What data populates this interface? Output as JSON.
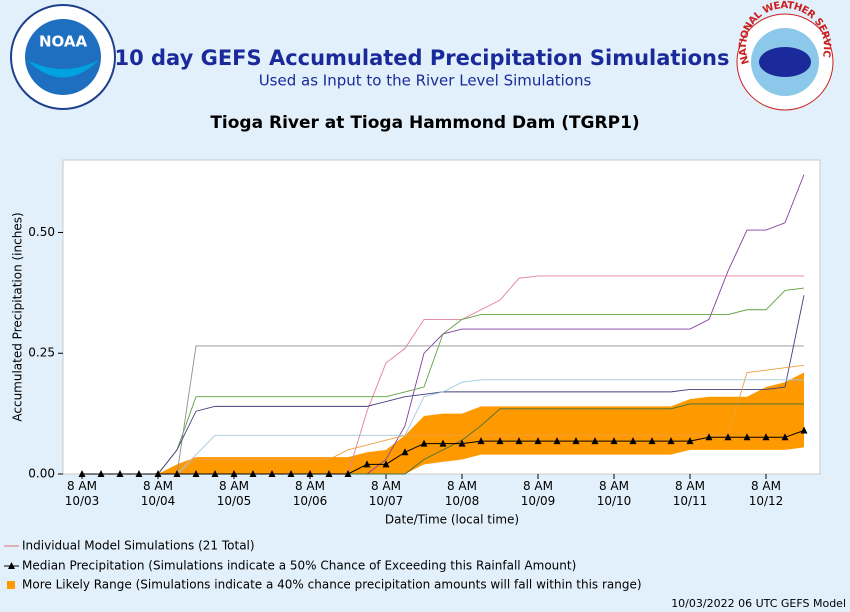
{
  "chart_data": {
    "type": "line",
    "title": "10 day GEFS Accumulated Precipitation Simulations",
    "subtitle": "Used as Input to the River Level Simulations",
    "station": "Tioga River at Tioga Hammond Dam (TGRP1)",
    "logo_left": "NOAA",
    "logo_right": "NATIONAL WEATHER SERVICE",
    "x_label": "Date/Time (local time)",
    "y_label": "Accumulated Precipitation (inches)",
    "footer": "10/03/2022 06 UTC GEFS Model",
    "categories": [
      "8 AM 10/03",
      null,
      null,
      null,
      "8 AM 10/04",
      null,
      null,
      null,
      "8 AM 10/05",
      null,
      null,
      null,
      "8 AM 10/06",
      null,
      null,
      null,
      "8 AM 10/07",
      null,
      null,
      null,
      "8 AM 10/08",
      null,
      null,
      null,
      "8 AM 10/09",
      null,
      null,
      null,
      "8 AM 10/10",
      null,
      null,
      null,
      "8 AM 10/11",
      null,
      null,
      null,
      "8 AM 10/12",
      null,
      null
    ],
    "ylim": [
      0,
      0.65
    ],
    "yticks": [
      {
        "value": 0,
        "label": "0.00"
      },
      {
        "value": 0.25,
        "label": "0.25"
      },
      {
        "value": 0.5,
        "label": "0.50"
      }
    ],
    "grid": false,
    "individual": {
      "name": "Individual Model Simulations (21 Total)",
      "color": "#e07070",
      "series": [
        {
          "color": "#8040a0",
          "values": [
            0,
            0,
            0,
            0,
            0,
            0,
            0,
            0,
            0,
            0,
            0,
            0,
            0,
            0,
            0,
            0,
            0.03,
            0.1,
            0.25,
            0.29,
            0.3,
            0.3,
            0.3,
            0.3,
            0.3,
            0.3,
            0.3,
            0.3,
            0.3,
            0.3,
            0.3,
            0.3,
            0.3,
            0.32,
            0.42,
            0.505,
            0.505,
            0.52,
            0.62
          ]
        },
        {
          "color": "#e080a0",
          "values": [
            0,
            0,
            0,
            0,
            0,
            0,
            0,
            0,
            0,
            0,
            0,
            0,
            0,
            0,
            0,
            0.13,
            0.23,
            0.26,
            0.32,
            0.32,
            0.32,
            0.34,
            0.36,
            0.405,
            0.41,
            0.41,
            0.41,
            0.41,
            0.41,
            0.41,
            0.41,
            0.41,
            0.41,
            0.41,
            0.41,
            0.41,
            0.41,
            0.41,
            0.41
          ]
        },
        {
          "color": "#60a040",
          "values": [
            0,
            0,
            0,
            0,
            0,
            0.05,
            0.16,
            0.16,
            0.16,
            0.16,
            0.16,
            0.16,
            0.16,
            0.16,
            0.16,
            0.16,
            0.16,
            0.17,
            0.18,
            0.29,
            0.32,
            0.33,
            0.33,
            0.33,
            0.33,
            0.33,
            0.33,
            0.33,
            0.33,
            0.33,
            0.33,
            0.33,
            0.33,
            0.33,
            0.33,
            0.34,
            0.34,
            0.38,
            0.385
          ]
        },
        {
          "color": "#909090",
          "values": [
            0,
            0,
            0,
            0,
            0,
            0,
            0.265,
            0.265,
            0.265,
            0.265,
            0.265,
            0.265,
            0.265,
            0.265,
            0.265,
            0.265,
            0.265,
            0.265,
            0.265,
            0.265,
            0.265,
            0.265,
            0.265,
            0.265,
            0.265,
            0.265,
            0.265,
            0.265,
            0.265,
            0.265,
            0.265,
            0.265,
            0.265,
            0.265,
            0.265,
            0.265,
            0.265,
            0.265,
            0.265
          ]
        },
        {
          "color": "#404080",
          "values": [
            0,
            0,
            0,
            0,
            0,
            0.05,
            0.13,
            0.14,
            0.14,
            0.14,
            0.14,
            0.14,
            0.14,
            0.14,
            0.14,
            0.14,
            0.15,
            0.16,
            0.165,
            0.17,
            0.17,
            0.17,
            0.17,
            0.17,
            0.17,
            0.17,
            0.17,
            0.17,
            0.17,
            0.17,
            0.17,
            0.17,
            0.175,
            0.175,
            0.175,
            0.175,
            0.175,
            0.18,
            0.37
          ]
        },
        {
          "color": "#f0a040",
          "values": [
            0,
            0,
            0,
            0,
            0,
            0,
            0.03,
            0.03,
            0.03,
            0.03,
            0.03,
            0.03,
            0.03,
            0.03,
            0.05,
            0.06,
            0.07,
            0.08,
            0.08,
            0.08,
            0.08,
            0.08,
            0.08,
            0.08,
            0.08,
            0.08,
            0.08,
            0.08,
            0.08,
            0.08,
            0.08,
            0.08,
            0.08,
            0.08,
            0.08,
            0.21,
            0.215,
            0.22,
            0.225
          ]
        },
        {
          "color": "#a0c8e0",
          "values": [
            0,
            0,
            0,
            0,
            0,
            0,
            0.04,
            0.08,
            0.08,
            0.08,
            0.08,
            0.08,
            0.08,
            0.08,
            0.08,
            0.08,
            0.08,
            0.08,
            0.16,
            0.17,
            0.19,
            0.195,
            0.195,
            0.195,
            0.195,
            0.195,
            0.195,
            0.195,
            0.195,
            0.195,
            0.195,
            0.195,
            0.195,
            0.195,
            0.195,
            0.195,
            0.195,
            0.195,
            0.195
          ]
        },
        {
          "color": "#407040",
          "values": [
            0,
            0,
            0,
            0,
            0,
            0,
            0,
            0,
            0,
            0,
            0,
            0,
            0,
            0,
            0,
            0,
            0,
            0,
            0.03,
            0.05,
            0.07,
            0.1,
            0.135,
            0.135,
            0.135,
            0.135,
            0.135,
            0.135,
            0.135,
            0.135,
            0.135,
            0.135,
            0.145,
            0.145,
            0.145,
            0.145,
            0.145,
            0.145,
            0.145
          ]
        }
      ]
    },
    "median": {
      "name": "Median Precipitation (Simulations indicate a 50% Chance of Exceeding this Rainfall Amount)",
      "color": "#000000",
      "values": [
        0,
        0,
        0,
        0,
        0,
        0,
        0,
        0,
        0,
        0,
        0,
        0,
        0,
        0,
        0,
        0.02,
        0.02,
        0.045,
        0.063,
        0.063,
        0.063,
        0.068,
        0.068,
        0.068,
        0.068,
        0.068,
        0.068,
        0.068,
        0.068,
        0.068,
        0.068,
        0.068,
        0.068,
        0.076,
        0.076,
        0.076,
        0.076,
        0.076,
        0.09
      ]
    },
    "range": {
      "name": "More Likely Range (Simulations indicate a 40% chance precipitation amounts will fall within this range)",
      "color": "#ff9900",
      "high": [
        null,
        null,
        null,
        null,
        0,
        0.02,
        0.035,
        0.035,
        0.035,
        0.035,
        0.035,
        0.035,
        0.035,
        0.035,
        0.035,
        0.045,
        0.05,
        0.08,
        0.12,
        0.125,
        0.125,
        0.14,
        0.14,
        0.14,
        0.14,
        0.14,
        0.14,
        0.14,
        0.14,
        0.14,
        0.14,
        0.14,
        0.155,
        0.16,
        0.16,
        0.16,
        0.18,
        0.19,
        0.21
      ],
      "low": [
        null,
        null,
        null,
        null,
        0,
        0,
        0,
        0,
        0,
        0,
        0,
        0,
        0,
        0,
        0,
        0,
        0,
        0,
        0.02,
        0.025,
        0.03,
        0.04,
        0.04,
        0.04,
        0.04,
        0.04,
        0.04,
        0.04,
        0.04,
        0.04,
        0.04,
        0.04,
        0.05,
        0.05,
        0.05,
        0.05,
        0.05,
        0.05,
        0.055
      ]
    }
  }
}
